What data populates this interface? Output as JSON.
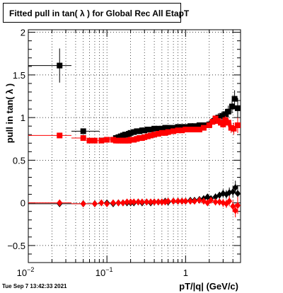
{
  "title": "Fitted pull in tan( λ ) for Global Rec All EtapT",
  "timestamp": "Tue Sep  7 13:42:33 2021",
  "chart_data": {
    "type": "scatter",
    "xlabel": "pT/|q| (GeV/c)",
    "ylabel": "pull in tan( λ )",
    "xscale": "log",
    "xlim": [
      0.01,
      5.0
    ],
    "ylim": [
      -0.7,
      2.03
    ],
    "grid": true,
    "x_ticks": [
      {
        "value": 0.01,
        "label": "10",
        "exp": "−2"
      },
      {
        "value": 0.1,
        "label": "10",
        "exp": "−1"
      },
      {
        "value": 1,
        "label": "1",
        "exp": ""
      }
    ],
    "y_ticks": [
      {
        "value": -0.5,
        "label": "−0.5"
      },
      {
        "value": 0,
        "label": "0"
      },
      {
        "value": 0.5,
        "label": "0.5"
      },
      {
        "value": 1,
        "label": "1"
      },
      {
        "value": 1.5,
        "label": "1.5"
      },
      {
        "value": 2,
        "label": "2"
      }
    ],
    "series": [
      {
        "color": "#000000",
        "marker": "square",
        "x": [
          0.025,
          0.05,
          0.13,
          0.14,
          0.15,
          0.16,
          0.17,
          0.18,
          0.19,
          0.2,
          0.22,
          0.24,
          0.26,
          0.28,
          0.3,
          0.33,
          0.36,
          0.4,
          0.45,
          0.5,
          0.55,
          0.6,
          0.7,
          0.8,
          0.9,
          1.0,
          1.15,
          1.3,
          1.5,
          1.7,
          2.0,
          2.3,
          2.6,
          2.9,
          3.2,
          3.5,
          3.9,
          4.2,
          4.6
        ],
        "y": [
          1.61,
          0.84,
          0.76,
          0.77,
          0.78,
          0.79,
          0.8,
          0.8,
          0.81,
          0.82,
          0.83,
          0.84,
          0.84,
          0.85,
          0.85,
          0.86,
          0.86,
          0.87,
          0.87,
          0.87,
          0.88,
          0.88,
          0.88,
          0.89,
          0.89,
          0.89,
          0.9,
          0.9,
          0.91,
          0.91,
          0.92,
          0.96,
          1.0,
          1.02,
          1.04,
          1.07,
          1.13,
          1.22,
          1.11
        ],
        "yerr": [
          0.2,
          0.03,
          0.02,
          0.02,
          0.02,
          0.02,
          0.02,
          0.02,
          0.02,
          0.02,
          0.02,
          0.02,
          0.02,
          0.02,
          0.02,
          0.02,
          0.02,
          0.02,
          0.02,
          0.02,
          0.02,
          0.02,
          0.02,
          0.02,
          0.02,
          0.02,
          0.02,
          0.03,
          0.03,
          0.03,
          0.04,
          0.04,
          0.05,
          0.05,
          0.06,
          0.07,
          0.08,
          0.1,
          0.12
        ]
      },
      {
        "color": "#ff0000",
        "marker": "square",
        "x": [
          0.025,
          0.05,
          0.06,
          0.07,
          0.085,
          0.1,
          0.12,
          0.13,
          0.14,
          0.15,
          0.16,
          0.17,
          0.18,
          0.19,
          0.2,
          0.22,
          0.24,
          0.26,
          0.28,
          0.3,
          0.33,
          0.36,
          0.4,
          0.45,
          0.5,
          0.55,
          0.6,
          0.7,
          0.8,
          0.9,
          1.0,
          1.15,
          1.3,
          1.5,
          1.7,
          2.0,
          2.2,
          2.4,
          2.6,
          2.8,
          3.0,
          3.2,
          3.5,
          3.8,
          4.1,
          4.6
        ],
        "y": [
          0.79,
          0.76,
          0.73,
          0.73,
          0.73,
          0.74,
          0.74,
          0.73,
          0.73,
          0.73,
          0.73,
          0.73,
          0.73,
          0.73,
          0.74,
          0.74,
          0.75,
          0.76,
          0.76,
          0.77,
          0.78,
          0.79,
          0.8,
          0.81,
          0.82,
          0.82,
          0.83,
          0.84,
          0.85,
          0.85,
          0.86,
          0.86,
          0.86,
          0.86,
          0.88,
          0.91,
          0.95,
          0.99,
          0.96,
          0.94,
          0.92,
          0.97,
          0.94,
          0.88,
          0.87,
          0.91
        ],
        "yerr": [
          0.02,
          0.02,
          0.015,
          0.015,
          0.015,
          0.015,
          0.015,
          0.015,
          0.015,
          0.015,
          0.015,
          0.015,
          0.015,
          0.015,
          0.015,
          0.015,
          0.015,
          0.015,
          0.015,
          0.015,
          0.015,
          0.015,
          0.015,
          0.015,
          0.015,
          0.015,
          0.015,
          0.015,
          0.02,
          0.02,
          0.02,
          0.02,
          0.02,
          0.02,
          0.02,
          0.03,
          0.03,
          0.03,
          0.03,
          0.04,
          0.04,
          0.05,
          0.05,
          0.06,
          0.07,
          0.09
        ]
      },
      {
        "color": "#000000",
        "marker": "diamond",
        "x": [
          0.025,
          0.05,
          0.07,
          0.1,
          0.12,
          0.14,
          0.16,
          0.18,
          0.2,
          0.22,
          0.25,
          0.28,
          0.32,
          0.36,
          0.4,
          0.45,
          0.5,
          0.55,
          0.6,
          0.7,
          0.8,
          0.9,
          1.0,
          1.15,
          1.3,
          1.5,
          1.7,
          1.9,
          2.1,
          2.4,
          2.7,
          3.0,
          3.3,
          3.6,
          4.0,
          4.3,
          4.6
        ],
        "y": [
          -0.01,
          -0.01,
          -0.01,
          0.0,
          -0.01,
          0.0,
          0.0,
          0.0,
          0.0,
          0.0,
          0.01,
          0.0,
          0.01,
          0.0,
          0.01,
          0.01,
          0.01,
          0.02,
          0.01,
          0.02,
          0.02,
          0.02,
          0.02,
          0.03,
          0.03,
          0.04,
          0.05,
          0.07,
          0.05,
          0.07,
          0.09,
          0.11,
          0.1,
          0.12,
          0.13,
          0.18,
          0.11
        ],
        "yerr": [
          0.02,
          0.02,
          0.015,
          0.015,
          0.015,
          0.015,
          0.015,
          0.015,
          0.015,
          0.015,
          0.015,
          0.015,
          0.015,
          0.015,
          0.015,
          0.015,
          0.015,
          0.015,
          0.015,
          0.015,
          0.02,
          0.02,
          0.02,
          0.02,
          0.02,
          0.02,
          0.03,
          0.03,
          0.03,
          0.04,
          0.04,
          0.05,
          0.05,
          0.06,
          0.07,
          0.08,
          0.1
        ]
      },
      {
        "color": "#ff0000",
        "marker": "diamond",
        "x": [
          0.025,
          0.05,
          0.07,
          0.085,
          0.1,
          0.12,
          0.14,
          0.16,
          0.18,
          0.2,
          0.22,
          0.25,
          0.28,
          0.32,
          0.36,
          0.4,
          0.45,
          0.5,
          0.55,
          0.6,
          0.7,
          0.8,
          0.9,
          1.0,
          1.15,
          1.3,
          1.5,
          1.7,
          1.9,
          2.1,
          2.4,
          2.7,
          3.0,
          3.3,
          3.6,
          4.0,
          4.3,
          4.6
        ],
        "y": [
          0.0,
          -0.01,
          -0.01,
          0.0,
          -0.01,
          0.0,
          0.0,
          0.0,
          0.01,
          0.01,
          0.01,
          0.01,
          0.01,
          0.01,
          0.01,
          0.01,
          0.01,
          0.01,
          0.01,
          0.02,
          0.02,
          0.02,
          0.02,
          0.02,
          0.02,
          0.02,
          0.03,
          0.02,
          0.0,
          0.03,
          0.01,
          0.01,
          0.0,
          -0.01,
          0.02,
          -0.04,
          -0.09,
          -0.03
        ],
        "yerr": [
          0.02,
          0.02,
          0.015,
          0.015,
          0.015,
          0.015,
          0.015,
          0.015,
          0.015,
          0.015,
          0.015,
          0.015,
          0.015,
          0.015,
          0.015,
          0.015,
          0.015,
          0.015,
          0.015,
          0.015,
          0.015,
          0.02,
          0.02,
          0.02,
          0.02,
          0.02,
          0.02,
          0.03,
          0.03,
          0.03,
          0.04,
          0.04,
          0.05,
          0.05,
          0.06,
          0.07,
          0.08,
          0.1
        ]
      }
    ]
  }
}
